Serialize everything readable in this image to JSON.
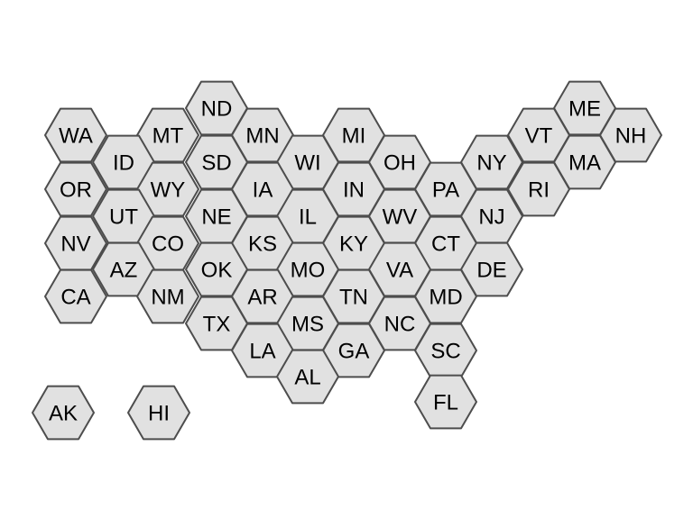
{
  "map": {
    "style": "hex tile grid",
    "fill_color": "#e1e1e1",
    "stroke_color": "#4d4d4d",
    "label_color": "#000000",
    "states": [
      {
        "label": "ND"
      },
      {
        "label": "ME"
      },
      {
        "label": "WA"
      },
      {
        "label": "MT"
      },
      {
        "label": "MN"
      },
      {
        "label": "MI"
      },
      {
        "label": "VT"
      },
      {
        "label": "NH"
      },
      {
        "label": "ID"
      },
      {
        "label": "SD"
      },
      {
        "label": "WI"
      },
      {
        "label": "OH"
      },
      {
        "label": "NY"
      },
      {
        "label": "MA"
      },
      {
        "label": "OR"
      },
      {
        "label": "WY"
      },
      {
        "label": "IA"
      },
      {
        "label": "IN"
      },
      {
        "label": "PA"
      },
      {
        "label": "RI"
      },
      {
        "label": "UT"
      },
      {
        "label": "NE"
      },
      {
        "label": "IL"
      },
      {
        "label": "WV"
      },
      {
        "label": "NJ"
      },
      {
        "label": "NV"
      },
      {
        "label": "CO"
      },
      {
        "label": "KS"
      },
      {
        "label": "KY"
      },
      {
        "label": "CT"
      },
      {
        "label": "AZ"
      },
      {
        "label": "OK"
      },
      {
        "label": "MO"
      },
      {
        "label": "VA"
      },
      {
        "label": "DE"
      },
      {
        "label": "CA"
      },
      {
        "label": "NM"
      },
      {
        "label": "AR"
      },
      {
        "label": "TN"
      },
      {
        "label": "MD"
      },
      {
        "label": "TX"
      },
      {
        "label": "MS"
      },
      {
        "label": "NC"
      },
      {
        "label": "LA"
      },
      {
        "label": "GA"
      },
      {
        "label": "SC"
      },
      {
        "label": "AL"
      },
      {
        "label": "FL"
      },
      {
        "label": "AK"
      },
      {
        "label": "HI"
      }
    ]
  }
}
